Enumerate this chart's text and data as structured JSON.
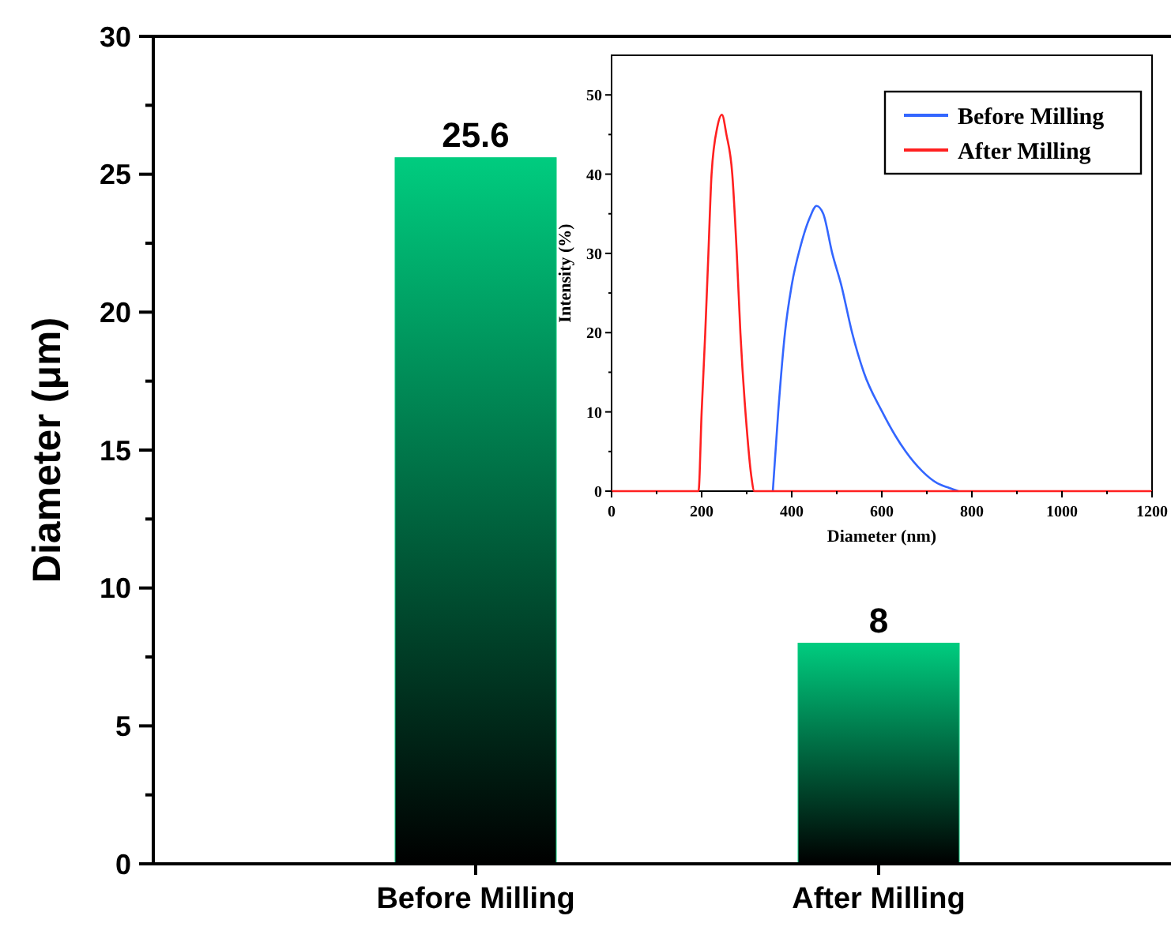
{
  "chart_data": [
    {
      "type": "bar",
      "categories": [
        "Before Milling",
        "After Milling"
      ],
      "values": [
        25.6,
        8
      ],
      "color": "#00cc7f",
      "data_labels": true,
      "ylabel": "Diameter (μm)",
      "ylim": [
        0,
        30
      ],
      "yticks": [
        0,
        {
          "value": 2.5,
          "label": null
        },
        5,
        {
          "value": 7.5,
          "label": null
        },
        10,
        {
          "value": 12.5,
          "label": null
        },
        15,
        {
          "value": 17.5,
          "label": null
        },
        20,
        {
          "value": 22.5,
          "label": null
        },
        25,
        {
          "value": 27.5,
          "label": null
        },
        30
      ]
    },
    {
      "type": "line",
      "xlabel": "Diameter (nm)",
      "ylabel": "Intensity (%)",
      "xlim": [
        0,
        1200
      ],
      "ylim": [
        0,
        55
      ],
      "xticks": [
        0,
        {
          "value": 100,
          "label": null
        },
        200,
        {
          "value": 300,
          "label": null
        },
        400,
        {
          "value": 500,
          "label": null
        },
        600,
        {
          "value": 700,
          "label": null
        },
        800,
        {
          "value": 900,
          "label": null
        },
        1000,
        {
          "value": 1100,
          "label": null
        },
        1200
      ],
      "yticks": [
        0,
        {
          "value": 5,
          "label": null
        },
        10,
        {
          "value": 15,
          "label": null
        },
        20,
        {
          "value": 25,
          "label": null
        },
        30,
        {
          "value": 35,
          "label": null
        },
        40,
        {
          "value": 45,
          "label": null
        },
        50
      ],
      "legend": "top right",
      "series": [
        {
          "name": "Before Milling",
          "color": "#3366ff",
          "x": [
            358,
            370,
            385,
            400,
            420,
            440,
            455,
            470,
            490,
            510,
            534,
            560,
            601,
            630,
            653,
            690,
            723,
            750,
            770
          ],
          "values": [
            0,
            10,
            20,
            26,
            31,
            34.5,
            36,
            35,
            30,
            26,
            20,
            15,
            10,
            7,
            5,
            2.5,
            1,
            0.4,
            0
          ]
        },
        {
          "name": "After Milling",
          "color": "#ff2020",
          "x": [
            0,
            193,
            200,
            208,
            215,
            222,
            235,
            245,
            255,
            268,
            278,
            286,
            300,
            310,
            317,
            1200
          ],
          "values": [
            0,
            0,
            10,
            20,
            30,
            40,
            46,
            47.5,
            45,
            40,
            30,
            20,
            8,
            2,
            0,
            0
          ]
        }
      ]
    }
  ]
}
